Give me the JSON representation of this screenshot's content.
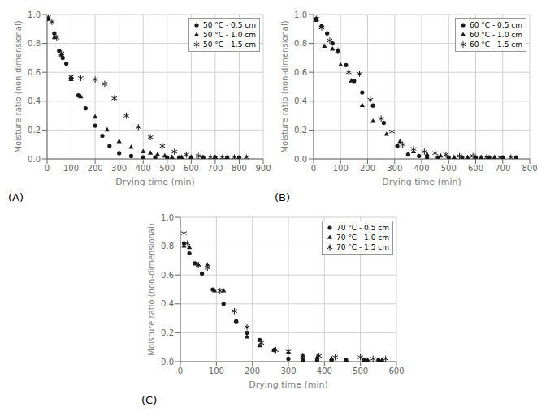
{
  "chart_data": [
    {
      "type": "scatter",
      "title": "(A)",
      "xlabel": "Drying time (min)",
      "ylabel": "Moisture ratio (non-dimensional)",
      "xlim": [
        0,
        900
      ],
      "ylim": [
        0,
        1.0
      ],
      "xticks": [
        0,
        100,
        200,
        300,
        400,
        500,
        600,
        700,
        800,
        900
      ],
      "yticks": [
        {
          "value": 0,
          "label": "0.0"
        },
        0.2,
        0.4,
        0.6,
        0.8,
        {
          "value": 1,
          "label": "1.0"
        }
      ],
      "grid": true,
      "legend": "upper right",
      "color": "#1a1a1a",
      "series": [
        {
          "name": "50 °C - 0.5 cm",
          "marker": "circle",
          "x": [
            5,
            30,
            50,
            65,
            80,
            100,
            130,
            160,
            200,
            230,
            260,
            300,
            350,
            400,
            450,
            500,
            550,
            600,
            650,
            700,
            750,
            800
          ],
          "values": [
            0.97,
            0.87,
            0.75,
            0.7,
            0.66,
            0.56,
            0.44,
            0.35,
            0.23,
            0.16,
            0.09,
            0.04,
            0.02,
            0.01,
            0.01,
            0.01,
            0.01,
            0.01,
            0.01,
            0.01,
            0.01,
            0.01
          ]
        },
        {
          "name": "50 °C - 1.0 cm",
          "marker": "triangle",
          "x": [
            5,
            30,
            60,
            100,
            140,
            200,
            250,
            300,
            350,
            400,
            430,
            460,
            490,
            520,
            560,
            600,
            650,
            700,
            750
          ],
          "values": [
            0.97,
            0.84,
            0.72,
            0.55,
            0.43,
            0.29,
            0.2,
            0.12,
            0.08,
            0.05,
            0.04,
            0.03,
            0.02,
            0.01,
            0.01,
            0.01,
            0.01,
            0.01,
            0.01
          ]
        },
        {
          "name": "50 °C - 1.5 cm",
          "marker": "asterisk",
          "x": [
            5,
            20,
            40,
            60,
            100,
            140,
            200,
            240,
            280,
            330,
            380,
            430,
            480,
            530,
            580,
            630,
            680,
            730,
            780,
            830
          ],
          "values": [
            0.98,
            0.95,
            0.84,
            0.73,
            0.57,
            0.56,
            0.55,
            0.52,
            0.42,
            0.3,
            0.22,
            0.15,
            0.09,
            0.05,
            0.03,
            0.02,
            0.01,
            0.01,
            0.01,
            0.01
          ]
        }
      ]
    },
    {
      "type": "scatter",
      "title": "(B)",
      "xlabel": "Drying time (min)",
      "ylabel": "Moisture ratio (non-dimensional)",
      "xlim": [
        0,
        800
      ],
      "ylim": [
        0,
        1.0
      ],
      "xticks": [
        0,
        100,
        200,
        300,
        400,
        500,
        600,
        700,
        800
      ],
      "yticks": [
        {
          "value": 0,
          "label": "0.0"
        },
        0.2,
        0.4,
        0.6,
        0.8,
        {
          "value": 1,
          "label": "1.0"
        }
      ],
      "grid": true,
      "legend": "upper right",
      "color": "#1a1a1a",
      "series": [
        {
          "name": "60 °C - 0.5 cm",
          "marker": "circle",
          "x": [
            10,
            30,
            50,
            70,
            90,
            120,
            150,
            180,
            220,
            260,
            310,
            350,
            390,
            420,
            460,
            500,
            550,
            600,
            650,
            700,
            750
          ],
          "values": [
            0.97,
            0.92,
            0.87,
            0.8,
            0.75,
            0.65,
            0.54,
            0.46,
            0.37,
            0.25,
            0.09,
            0.03,
            0.02,
            0.01,
            0.01,
            0.01,
            0.01,
            0.01,
            0.01,
            0.01,
            0.01
          ]
        },
        {
          "name": "60 °C - 1.0 cm",
          "marker": "triangle",
          "x": [
            10,
            40,
            70,
            100,
            140,
            180,
            220,
            270,
            320,
            370,
            420,
            470,
            520,
            570,
            620,
            670
          ],
          "values": [
            0.96,
            0.78,
            0.76,
            0.65,
            0.54,
            0.37,
            0.26,
            0.17,
            0.12,
            0.05,
            0.03,
            0.02,
            0.01,
            0.01,
            0.01,
            0.01
          ]
        },
        {
          "name": "60 °C - 1.5 cm",
          "marker": "asterisk",
          "x": [
            10,
            30,
            60,
            90,
            130,
            170,
            210,
            250,
            290,
            330,
            370,
            410,
            450,
            490,
            540,
            590,
            640,
            690,
            730
          ],
          "values": [
            0.97,
            0.91,
            0.82,
            0.75,
            0.6,
            0.59,
            0.41,
            0.28,
            0.19,
            0.1,
            0.07,
            0.05,
            0.04,
            0.03,
            0.02,
            0.02,
            0.01,
            0.01,
            0.01
          ]
        }
      ]
    },
    {
      "type": "scatter",
      "title": "(C)",
      "xlabel": "Drying time (min)",
      "ylabel": "Moisture ratio (non-dimensional)",
      "xlim": [
        0,
        600
      ],
      "ylim": [
        0,
        1.0
      ],
      "xticks": [
        0,
        100,
        200,
        300,
        400,
        500,
        600
      ],
      "yticks": [
        {
          "value": 0,
          "label": "0.0"
        },
        0.2,
        0.4,
        0.6,
        0.8,
        {
          "value": 1,
          "label": "1.0"
        }
      ],
      "grid": true,
      "legend": "upper right",
      "color": "#1a1a1a",
      "series": [
        {
          "name": "70 °C - 0.5 cm",
          "marker": "circle",
          "x": [
            10,
            25,
            40,
            60,
            90,
            120,
            155,
            185,
            220,
            260,
            300,
            340,
            380,
            420,
            460,
            510,
            550
          ],
          "values": [
            0.82,
            0.75,
            0.68,
            0.61,
            0.5,
            0.4,
            0.28,
            0.2,
            0.15,
            0.08,
            0.02,
            0.01,
            0.01,
            0.01,
            0.01,
            0.01,
            0.01
          ]
        },
        {
          "name": "70 °C - 1.0 cm",
          "marker": "triangle",
          "x": [
            10,
            25,
            50,
            75,
            95,
            120,
            155,
            185,
            220,
            260,
            300,
            340,
            380,
            420,
            460,
            520,
            560
          ],
          "values": [
            0.8,
            0.79,
            0.67,
            0.67,
            0.49,
            0.49,
            0.28,
            0.17,
            0.11,
            0.08,
            0.06,
            0.04,
            0.03,
            0.02,
            0.01,
            0.01,
            0.01
          ]
        },
        {
          "name": "70 °C - 1.5 cm",
          "marker": "asterisk",
          "x": [
            10,
            20,
            50,
            75,
            110,
            150,
            185,
            225,
            265,
            300,
            340,
            385,
            430,
            500,
            535,
            570
          ],
          "values": [
            0.89,
            0.82,
            0.67,
            0.65,
            0.49,
            0.35,
            0.24,
            0.13,
            0.08,
            0.07,
            0.04,
            0.04,
            0.03,
            0.03,
            0.02,
            0.02
          ]
        }
      ]
    }
  ]
}
